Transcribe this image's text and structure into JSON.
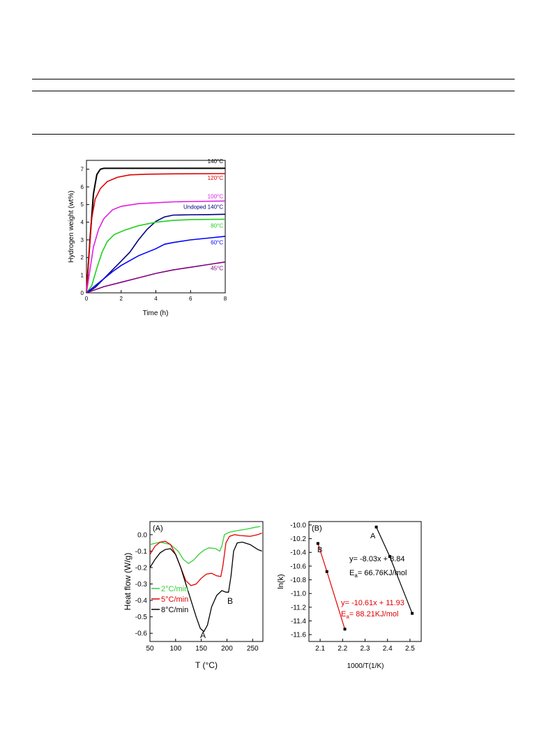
{
  "chart_data": [
    {
      "type": "line",
      "title": "",
      "xlabel": "Time (h)",
      "ylabel": "Hydrogen weight (wt%)",
      "xlim": [
        0,
        8
      ],
      "ylim": [
        0,
        7.5
      ],
      "xticks": [
        0,
        2,
        4,
        6,
        8
      ],
      "yticks": [
        0,
        1,
        2,
        3,
        4,
        5,
        6,
        7
      ],
      "series": [
        {
          "name": "140°C",
          "color": "#000000",
          "points": [
            [
              0,
              0
            ],
            [
              0.2,
              3.0
            ],
            [
              0.4,
              5.6
            ],
            [
              0.6,
              6.7
            ],
            [
              0.8,
              7.0
            ],
            [
              1.0,
              7.05
            ],
            [
              1.5,
              7.05
            ],
            [
              3,
              7.05
            ],
            [
              5,
              7.05
            ],
            [
              8,
              7.05
            ]
          ]
        },
        {
          "name": "120°C",
          "color": "#e00000",
          "points": [
            [
              0,
              0
            ],
            [
              0.15,
              2.2
            ],
            [
              0.3,
              4.2
            ],
            [
              0.5,
              5.3
            ],
            [
              0.8,
              5.9
            ],
            [
              1.2,
              6.3
            ],
            [
              1.8,
              6.55
            ],
            [
              2.5,
              6.68
            ],
            [
              3.5,
              6.72
            ],
            [
              5,
              6.74
            ],
            [
              8,
              6.75
            ]
          ]
        },
        {
          "name": "100°C",
          "color": "#e020e0",
          "points": [
            [
              0,
              0
            ],
            [
              0.2,
              1.3
            ],
            [
              0.4,
              2.6
            ],
            [
              0.7,
              3.6
            ],
            [
              1.0,
              4.2
            ],
            [
              1.5,
              4.7
            ],
            [
              2.0,
              4.9
            ],
            [
              3,
              5.05
            ],
            [
              4,
              5.1
            ],
            [
              5,
              5.15
            ],
            [
              6,
              5.17
            ],
            [
              8,
              5.2
            ]
          ]
        },
        {
          "name": "Undoped 140°C",
          "color": "#000080",
          "points": [
            [
              0,
              0
            ],
            [
              0.5,
              0.3
            ],
            [
              1.0,
              0.8
            ],
            [
              1.5,
              1.3
            ],
            [
              2.0,
              1.8
            ],
            [
              2.5,
              2.3
            ],
            [
              3.0,
              3.0
            ],
            [
              3.5,
              3.6
            ],
            [
              4.0,
              4.05
            ],
            [
              4.5,
              4.3
            ],
            [
              5,
              4.4
            ],
            [
              6,
              4.42
            ],
            [
              7,
              4.43
            ],
            [
              8,
              4.45
            ]
          ]
        },
        {
          "name": "80°C",
          "color": "#20d020",
          "points": [
            [
              0,
              0
            ],
            [
              0.3,
              0.4
            ],
            [
              0.6,
              1.4
            ],
            [
              0.9,
              2.3
            ],
            [
              1.2,
              2.9
            ],
            [
              1.6,
              3.3
            ],
            [
              2.2,
              3.55
            ],
            [
              3,
              3.8
            ],
            [
              4,
              4.0
            ],
            [
              5,
              4.1
            ],
            [
              6,
              4.15
            ],
            [
              8,
              4.17
            ]
          ]
        },
        {
          "name": "60°C",
          "color": "#0000ff",
          "points": [
            [
              0,
              0
            ],
            [
              0.5,
              0.4
            ],
            [
              1.0,
              0.8
            ],
            [
              1.5,
              1.2
            ],
            [
              2.0,
              1.55
            ],
            [
              3,
              2.1
            ],
            [
              4,
              2.5
            ],
            [
              4.5,
              2.75
            ],
            [
              5,
              2.85
            ],
            [
              6,
              3.0
            ],
            [
              7,
              3.1
            ],
            [
              8,
              3.2
            ]
          ]
        },
        {
          "name": "45°C",
          "color": "#800080",
          "points": [
            [
              0,
              0
            ],
            [
              1,
              0.35
            ],
            [
              2,
              0.6
            ],
            [
              3,
              0.85
            ],
            [
              4,
              1.1
            ],
            [
              5,
              1.3
            ],
            [
              6,
              1.45
            ],
            [
              7,
              1.6
            ],
            [
              8,
              1.75
            ]
          ]
        }
      ]
    },
    {
      "type": "line",
      "panel_label": "(A)",
      "xlabel": "T (°C)",
      "ylabel": "Heat flow (W/g)",
      "xlim": [
        50,
        270
      ],
      "ylim": [
        -0.65,
        0.08
      ],
      "xticks": [
        50,
        100,
        150,
        200,
        250
      ],
      "yticks": [
        0.0,
        -0.1,
        -0.2,
        -0.3,
        -0.4,
        -0.5,
        -0.6
      ],
      "annotations": [
        "A",
        "B"
      ],
      "series": [
        {
          "name": "2°C/min",
          "color": "#30d030",
          "points": [
            [
              50,
              -0.06
            ],
            [
              70,
              -0.045
            ],
            [
              90,
              -0.06
            ],
            [
              105,
              -0.1
            ],
            [
              115,
              -0.15
            ],
            [
              125,
              -0.175
            ],
            [
              135,
              -0.155
            ],
            [
              145,
              -0.12
            ],
            [
              155,
              -0.095
            ],
            [
              165,
              -0.08
            ],
            [
              178,
              -0.085
            ],
            [
              186,
              -0.1
            ],
            [
              190,
              -0.07
            ],
            [
              195,
              0.0
            ],
            [
              205,
              0.015
            ],
            [
              220,
              0.025
            ],
            [
              240,
              0.035
            ],
            [
              255,
              0.045
            ],
            [
              265,
              0.05
            ]
          ]
        },
        {
          "name": "5°C/min",
          "color": "#e00000",
          "points": [
            [
              50,
              -0.12
            ],
            [
              60,
              -0.07
            ],
            [
              70,
              -0.045
            ],
            [
              80,
              -0.04
            ],
            [
              90,
              -0.06
            ],
            [
              100,
              -0.12
            ],
            [
              110,
              -0.2
            ],
            [
              120,
              -0.28
            ],
            [
              130,
              -0.31
            ],
            [
              140,
              -0.3
            ],
            [
              150,
              -0.265
            ],
            [
              160,
              -0.24
            ],
            [
              170,
              -0.235
            ],
            [
              180,
              -0.25
            ],
            [
              188,
              -0.255
            ],
            [
              192,
              -0.19
            ],
            [
              198,
              -0.05
            ],
            [
              205,
              -0.01
            ],
            [
              215,
              0.0
            ],
            [
              225,
              -0.005
            ],
            [
              245,
              -0.01
            ],
            [
              260,
              0.0
            ],
            [
              268,
              0.01
            ]
          ]
        },
        {
          "name": "8°C/min",
          "color": "#000000",
          "points": [
            [
              50,
              -0.2
            ],
            [
              60,
              -0.15
            ],
            [
              70,
              -0.11
            ],
            [
              80,
              -0.09
            ],
            [
              90,
              -0.085
            ],
            [
              100,
              -0.12
            ],
            [
              110,
              -0.2
            ],
            [
              120,
              -0.3
            ],
            [
              130,
              -0.4
            ],
            [
              140,
              -0.5
            ],
            [
              148,
              -0.57
            ],
            [
              155,
              -0.59
            ],
            [
              162,
              -0.55
            ],
            [
              170,
              -0.44
            ],
            [
              180,
              -0.37
            ],
            [
              190,
              -0.34
            ],
            [
              198,
              -0.35
            ],
            [
              203,
              -0.35
            ],
            [
              208,
              -0.25
            ],
            [
              213,
              -0.1
            ],
            [
              220,
              -0.05
            ],
            [
              230,
              -0.045
            ],
            [
              245,
              -0.06
            ],
            [
              260,
              -0.09
            ],
            [
              268,
              -0.1
            ]
          ]
        }
      ]
    },
    {
      "type": "scatter",
      "panel_label": "(B)",
      "xlabel": "1000/T(1/K)",
      "ylabel": "ln(k)",
      "xlim": [
        2.05,
        2.55
      ],
      "ylim": [
        -11.7,
        -9.95
      ],
      "xticks": [
        2.1,
        2.2,
        2.3,
        2.4,
        2.5
      ],
      "yticks": [
        -10.0,
        -10.2,
        -10.4,
        -10.6,
        -10.8,
        -11.0,
        -11.2,
        -11.4,
        -11.6
      ],
      "series": [
        {
          "name": "B",
          "color": "#e00000",
          "points": [
            [
              2.09,
              -10.27
            ],
            [
              2.13,
              -10.68
            ],
            [
              2.21,
              -11.52
            ]
          ],
          "fit": "y= -10.61x + 11.93",
          "ea_label": "E",
          "ea_sub": "a",
          "ea_value": "= 88.21KJ/mol"
        },
        {
          "name": "A",
          "color": "#000000",
          "points": [
            [
              2.35,
              -10.03
            ],
            [
              2.41,
              -10.46
            ],
            [
              2.51,
              -11.29
            ]
          ],
          "fit": "y= -8.03x + 8.84",
          "ea_label": "E",
          "ea_sub": "a",
          "ea_value": "= 66.76KJ/mol"
        }
      ]
    }
  ]
}
